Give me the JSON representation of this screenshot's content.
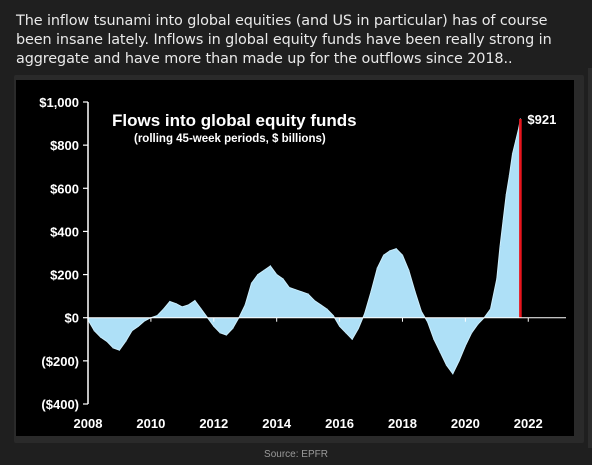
{
  "post": {
    "caption": "The inflow tsunami into global equities (and US in particular) has of course been insane lately. Inflows in global equity funds have been really strong in aggregate and have more than made up for the outflows since 2018..",
    "source": "Source: EPFR"
  },
  "chart_data": {
    "type": "area",
    "title": "Flows into global equity funds",
    "subtitle": "(rolling 45-week periods, $ billions)",
    "xlabel": "",
    "ylabel": "",
    "xlim": [
      2008,
      2023.2
    ],
    "ylim": [
      -400,
      1000
    ],
    "x_ticks": [
      "2008",
      "2010",
      "2012",
      "2014",
      "2016",
      "2018",
      "2020",
      "2022"
    ],
    "y_ticks": [
      "$1,000",
      "$800",
      "$600",
      "$400",
      "$200",
      "$0",
      "($200)",
      "($400)"
    ],
    "y_tick_values": [
      1000,
      800,
      600,
      400,
      200,
      0,
      -200,
      -400
    ],
    "grid": false,
    "fill_color": "#aee0f7",
    "latest_color": "#e8141c",
    "annotation": {
      "label": "$921",
      "x": 2021.75,
      "y": 921
    },
    "series": [
      {
        "x": [
          2008.0,
          2008.2,
          2008.4,
          2008.6,
          2008.8,
          2009.0,
          2009.2,
          2009.4,
          2009.6,
          2009.8,
          2010.0,
          2010.2,
          2010.4,
          2010.6,
          2010.8,
          2011.0,
          2011.2,
          2011.4,
          2011.6,
          2011.8,
          2012.0,
          2012.2,
          2012.4,
          2012.6,
          2012.8,
          2013.0,
          2013.2,
          2013.4,
          2013.6,
          2013.8,
          2014.0,
          2014.2,
          2014.4,
          2014.6,
          2014.8,
          2015.0,
          2015.2,
          2015.4,
          2015.6,
          2015.8,
          2016.0,
          2016.2,
          2016.4,
          2016.6,
          2016.8,
          2017.0,
          2017.2,
          2017.4,
          2017.6,
          2017.8,
          2018.0,
          2018.2,
          2018.4,
          2018.6,
          2018.8,
          2019.0,
          2019.2,
          2019.4,
          2019.6,
          2019.8,
          2020.0,
          2020.2,
          2020.4,
          2020.6,
          2020.8,
          2021.0,
          2021.1,
          2021.2,
          2021.3,
          2021.4,
          2021.5,
          2021.6,
          2021.7,
          2021.75
        ],
        "y": [
          -10,
          -60,
          -90,
          -110,
          -140,
          -150,
          -110,
          -60,
          -40,
          -15,
          0,
          10,
          40,
          75,
          65,
          50,
          60,
          80,
          40,
          0,
          -40,
          -70,
          -80,
          -50,
          0,
          60,
          160,
          200,
          220,
          240,
          200,
          180,
          140,
          130,
          120,
          110,
          80,
          60,
          40,
          10,
          -40,
          -70,
          -100,
          -50,
          20,
          120,
          230,
          290,
          310,
          320,
          290,
          220,
          120,
          30,
          -20,
          -100,
          -160,
          -220,
          -260,
          -200,
          -130,
          -70,
          -30,
          0,
          40,
          180,
          330,
          450,
          570,
          660,
          760,
          820,
          880,
          921
        ]
      }
    ]
  }
}
